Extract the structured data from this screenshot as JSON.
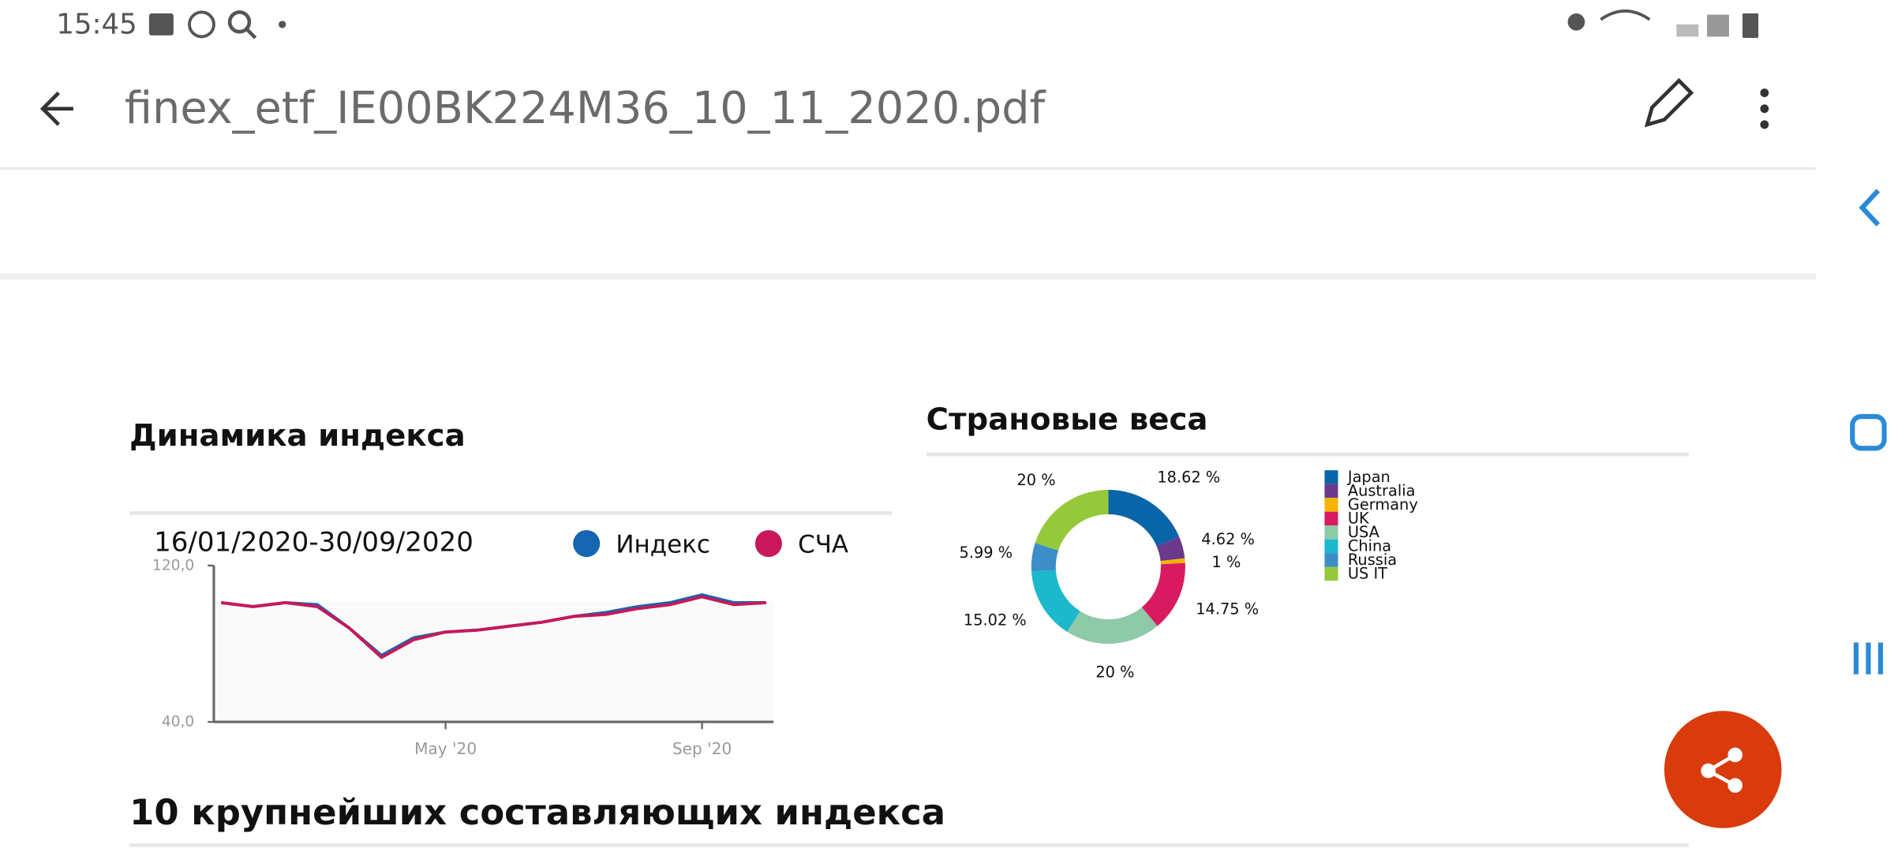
{
  "status_bar": {
    "time": "15:45"
  },
  "toolbar": {
    "title": "finex_etf_IE00BK224M36_10_11_2020.pdf"
  },
  "document": {
    "heading": "10 крупнейших составляющих индекса"
  },
  "chart_data": [
    {
      "type": "line",
      "title": "Динамика индекса",
      "subtitle": "16/01/2020-30/09/2020",
      "categories": [
        null,
        null,
        null,
        null,
        null,
        null,
        null,
        "May '20",
        null,
        null,
        null,
        null,
        null,
        null,
        null,
        "Sep '20",
        null,
        null
      ],
      "series": [
        {
          "name": "Индекс",
          "color": "#1565b0",
          "values": [
            101,
            99,
            101,
            100,
            88,
            74,
            83,
            86,
            87,
            89,
            91,
            94,
            96,
            99,
            101,
            105,
            101,
            101
          ]
        },
        {
          "name": "СЧА",
          "color": "#c8185a",
          "values": [
            101,
            99,
            101,
            99,
            88,
            73,
            82,
            86,
            87,
            89,
            91,
            94,
            95,
            98,
            100,
            104,
            100,
            101
          ]
        }
      ],
      "ylim": [
        40,
        120
      ],
      "yticks": [
        {
          "value": 40,
          "label": "40,0"
        },
        {
          "value": 120,
          "label": "120,0"
        }
      ]
    },
    {
      "type": "pie",
      "title": "Страновые веса",
      "categories": [
        "Japan",
        "Australia",
        "Germany",
        "UK",
        "USA",
        "China",
        "Russia",
        "US IT"
      ],
      "values": [
        18.62,
        4.62,
        1,
        14.75,
        20,
        15.02,
        5.99,
        20
      ],
      "value_labels": [
        "18.62 %",
        "4.62 %",
        "1 %",
        "14.75 %",
        "20 %",
        "15.02 %",
        "5.99 %",
        "20 %"
      ],
      "colors": [
        "#0a64a8",
        "#6b3a8c",
        "#f4b400",
        "#d81b60",
        "#8ec9a8",
        "#1cb8cc",
        "#3c8dc8",
        "#96c83c"
      ]
    }
  ]
}
